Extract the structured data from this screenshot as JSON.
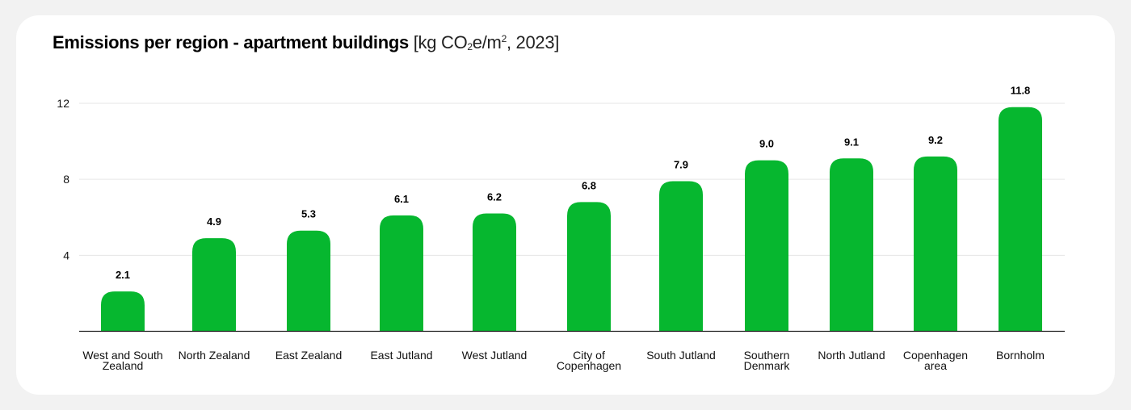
{
  "chart_data": {
    "type": "bar",
    "title": {
      "main": "Emissions per region - apartment buildings",
      "unit_open": "[kg CO",
      "unit_sub": "2",
      "unit_mid": "e/m",
      "unit_sup": "2",
      "unit_close": ", 2023]"
    },
    "categories": [
      "West and South Zealand",
      "North Zealand",
      "East Zealand",
      "East Jutland",
      "West Jutland",
      "City of Copenhagen",
      "South Jutland",
      "Southern Denmark",
      "North Jutland",
      "Copenhagen area",
      "Bornholm"
    ],
    "category_lines": [
      [
        "West and South",
        "Zealand"
      ],
      [
        "North Zealand"
      ],
      [
        "East Zealand"
      ],
      [
        "East Jutland"
      ],
      [
        "West Jutland"
      ],
      [
        "City of",
        "Copenhagen"
      ],
      [
        "South Jutland"
      ],
      [
        "Southern",
        "Denmark"
      ],
      [
        "North Jutland"
      ],
      [
        "Copenhagen",
        "area"
      ],
      [
        "Bornholm"
      ]
    ],
    "values": [
      2.1,
      4.9,
      5.3,
      6.1,
      6.2,
      6.8,
      7.9,
      9.0,
      9.1,
      9.2,
      11.8
    ],
    "value_labels": [
      "2.1",
      "4.9",
      "5.3",
      "6.1",
      "6.2",
      "6.8",
      "7.9",
      "9.0",
      "9.1",
      "9.2",
      "11.8"
    ],
    "yticks": [
      4,
      8,
      12
    ],
    "ytick_labels": [
      "4",
      "8",
      "12"
    ],
    "ylim": [
      0,
      12
    ],
    "grid": true,
    "bar_color": "#06b72f",
    "xlabel": "",
    "ylabel": ""
  }
}
